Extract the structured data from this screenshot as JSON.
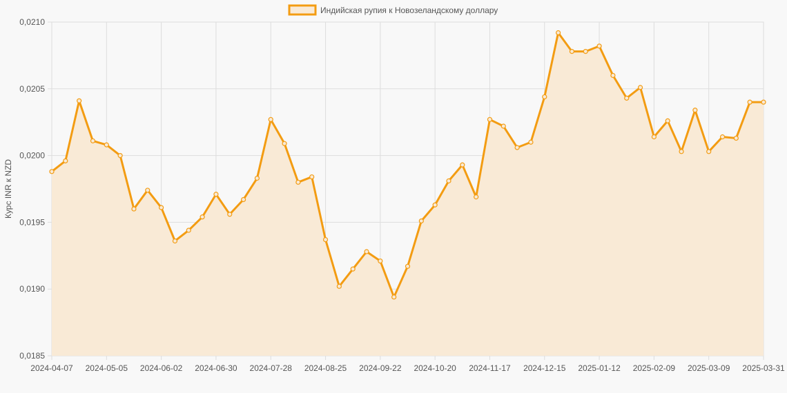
{
  "chart_data": {
    "type": "area",
    "legend": {
      "label": "Индийская рупия к Новозеландскому доллару",
      "position": "top"
    },
    "ylabel": "Курс INR к NZD",
    "xlabel": "",
    "ylim": [
      0.0185,
      0.021
    ],
    "yticks": [
      "0,0210",
      "0,0205",
      "0,0200",
      "0,0195",
      "0,0190",
      "0,0185"
    ],
    "ytick_values": [
      0.021,
      0.0205,
      0.02,
      0.0195,
      0.019,
      0.0185
    ],
    "xtick_labels": [
      "2024-04-07",
      "2024-05-05",
      "2024-06-02",
      "2024-06-30",
      "2024-07-28",
      "2024-08-25",
      "2024-09-22",
      "2024-10-20",
      "2024-11-17",
      "2024-12-15",
      "2025-01-12",
      "2025-02-09",
      "2025-03-09",
      "2025-03-31"
    ],
    "grid": true,
    "colors": {
      "line": "#f39c12",
      "fill": "#f9ead6"
    },
    "values": [
      0.01988,
      0.01996,
      0.02041,
      0.02011,
      0.02008,
      0.02,
      0.0196,
      0.01974,
      0.01961,
      0.01936,
      0.01944,
      0.01954,
      0.01971,
      0.01956,
      0.01967,
      0.01983,
      0.02027,
      0.02009,
      0.0198,
      0.01984,
      0.01937,
      0.01902,
      0.01915,
      0.01928,
      0.01921,
      0.01894,
      0.01917,
      0.01951,
      0.01963,
      0.01981,
      0.01993,
      0.01969,
      0.02027,
      0.02022,
      0.02006,
      0.0201,
      0.02044,
      0.02092,
      0.02078,
      0.02078,
      0.02082,
      0.0206,
      0.02043,
      0.02051,
      0.02014,
      0.02026,
      0.02003,
      0.02034,
      0.02003,
      0.02014,
      0.02013,
      0.0204,
      0.0204
    ]
  }
}
